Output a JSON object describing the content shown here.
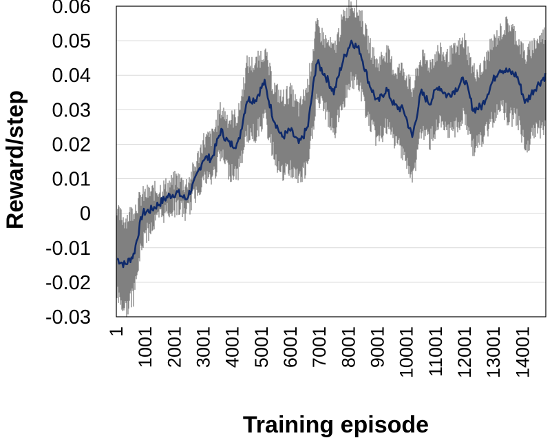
{
  "chart_data": {
    "type": "line",
    "title": "",
    "xlabel": "Training episode",
    "ylabel": "Reward/step",
    "xlim": [
      1,
      14800
    ],
    "ylim": [
      -0.03,
      0.06
    ],
    "x_ticks": [
      "1",
      "1001",
      "2001",
      "3001",
      "4001",
      "5001",
      "6001",
      "7001",
      "8001",
      "9001",
      "10001",
      "11001",
      "12001",
      "13001",
      "14001"
    ],
    "y_ticks": [
      "0.06",
      "0.05",
      "0.04",
      "0.03",
      "0.02",
      "0.01",
      "0",
      "-0.01",
      "-0.02",
      "-0.03"
    ],
    "grid": "horizontal",
    "legend": "none",
    "series": [
      {
        "color": "#0f2a6b",
        "style": "line",
        "x": [
          1,
          300,
          600,
          900,
          1200,
          1500,
          1800,
          2100,
          2400,
          2700,
          3000,
          3300,
          3600,
          3900,
          4200,
          4500,
          4800,
          5100,
          5400,
          5700,
          6000,
          6300,
          6600,
          6900,
          7200,
          7500,
          7800,
          8100,
          8400,
          8700,
          9000,
          9300,
          9600,
          9900,
          10200,
          10500,
          10800,
          11100,
          11400,
          11700,
          12000,
          12300,
          12600,
          12900,
          13200,
          13500,
          13800,
          14100,
          14400,
          14800
        ],
        "values": [
          -0.013,
          -0.015,
          -0.012,
          0.0,
          0.001,
          0.003,
          0.005,
          0.006,
          0.004,
          0.009,
          0.016,
          0.016,
          0.024,
          0.02,
          0.02,
          0.033,
          0.033,
          0.038,
          0.028,
          0.022,
          0.024,
          0.02,
          0.025,
          0.044,
          0.04,
          0.035,
          0.044,
          0.05,
          0.047,
          0.038,
          0.032,
          0.036,
          0.031,
          0.03,
          0.022,
          0.035,
          0.032,
          0.037,
          0.034,
          0.036,
          0.039,
          0.03,
          0.031,
          0.037,
          0.042,
          0.041,
          0.04,
          0.032,
          0.036,
          0.04
        ]
      },
      {
        "color": "#808080",
        "style": "band",
        "x": [
          1,
          300,
          600,
          900,
          1200,
          1500,
          1800,
          2100,
          2400,
          2700,
          3000,
          3300,
          3600,
          3900,
          4200,
          4500,
          4800,
          5100,
          5400,
          5700,
          6000,
          6300,
          6600,
          6900,
          7200,
          7500,
          7800,
          8100,
          8400,
          8700,
          9000,
          9300,
          9600,
          9900,
          10200,
          10500,
          10800,
          11100,
          11400,
          11700,
          12000,
          12300,
          12600,
          12900,
          13200,
          13500,
          13800,
          14100,
          14400,
          14800
        ],
        "upper": [
          0.0,
          -0.002,
          0.001,
          0.005,
          0.006,
          0.007,
          0.008,
          0.01,
          0.008,
          0.013,
          0.021,
          0.022,
          0.03,
          0.027,
          0.028,
          0.043,
          0.043,
          0.047,
          0.037,
          0.033,
          0.035,
          0.03,
          0.037,
          0.054,
          0.05,
          0.047,
          0.056,
          0.061,
          0.058,
          0.049,
          0.043,
          0.047,
          0.041,
          0.042,
          0.035,
          0.045,
          0.043,
          0.047,
          0.045,
          0.047,
          0.05,
          0.041,
          0.041,
          0.048,
          0.052,
          0.055,
          0.051,
          0.045,
          0.049,
          0.052
        ],
        "lower": [
          -0.023,
          -0.028,
          -0.024,
          -0.008,
          -0.004,
          -0.001,
          0.001,
          0.002,
          0.0,
          0.005,
          0.01,
          0.01,
          0.017,
          0.012,
          0.012,
          0.023,
          0.023,
          0.028,
          0.018,
          0.011,
          0.013,
          0.01,
          0.013,
          0.033,
          0.03,
          0.023,
          0.032,
          0.039,
          0.036,
          0.027,
          0.021,
          0.025,
          0.021,
          0.018,
          0.009,
          0.024,
          0.021,
          0.026,
          0.023,
          0.025,
          0.028,
          0.019,
          0.021,
          0.026,
          0.032,
          0.028,
          0.028,
          0.019,
          0.023,
          0.026
        ]
      }
    ]
  }
}
